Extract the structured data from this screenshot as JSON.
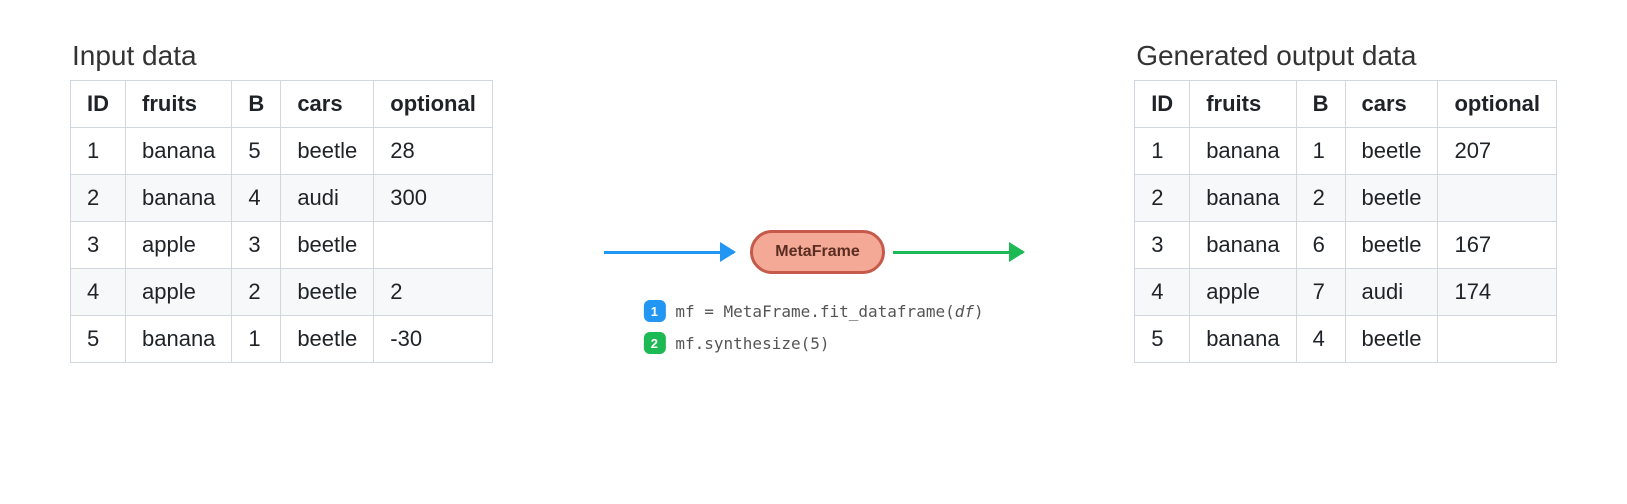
{
  "colors": {
    "arrow_blue": "#2196f3",
    "arrow_green": "#1db954",
    "node_fill": "#f4a896",
    "node_border": "#c55a4a",
    "table_border": "#d0d7de",
    "row_alt_bg": "#f6f8fa",
    "text": "#1f2328"
  },
  "input": {
    "title": "Input data",
    "columns": [
      "ID",
      "fruits",
      "B",
      "cars",
      "optional"
    ],
    "rows": [
      [
        "1",
        "banana",
        "5",
        "beetle",
        "28"
      ],
      [
        "2",
        "banana",
        "4",
        "audi",
        "300"
      ],
      [
        "3",
        "apple",
        "3",
        "beetle",
        ""
      ],
      [
        "4",
        "apple",
        "2",
        "beetle",
        "2"
      ],
      [
        "5",
        "banana",
        "1",
        "beetle",
        "-30"
      ]
    ]
  },
  "output": {
    "title": "Generated output data",
    "columns": [
      "ID",
      "fruits",
      "B",
      "cars",
      "optional"
    ],
    "rows": [
      [
        "1",
        "banana",
        "1",
        "beetle",
        "207"
      ],
      [
        "2",
        "banana",
        "2",
        "beetle",
        ""
      ],
      [
        "3",
        "banana",
        "6",
        "beetle",
        "167"
      ],
      [
        "4",
        "apple",
        "7",
        "audi",
        "174"
      ],
      [
        "5",
        "banana",
        "4",
        "beetle",
        ""
      ]
    ]
  },
  "node": {
    "label": "MetaFrame"
  },
  "code": {
    "line1_badge": "1",
    "line1_a": "mf = MetaFrame.fit_dataframe(",
    "line1_arg": "df",
    "line1_b": ")",
    "line2_badge": "2",
    "line2": "mf.synthesize(5)"
  }
}
